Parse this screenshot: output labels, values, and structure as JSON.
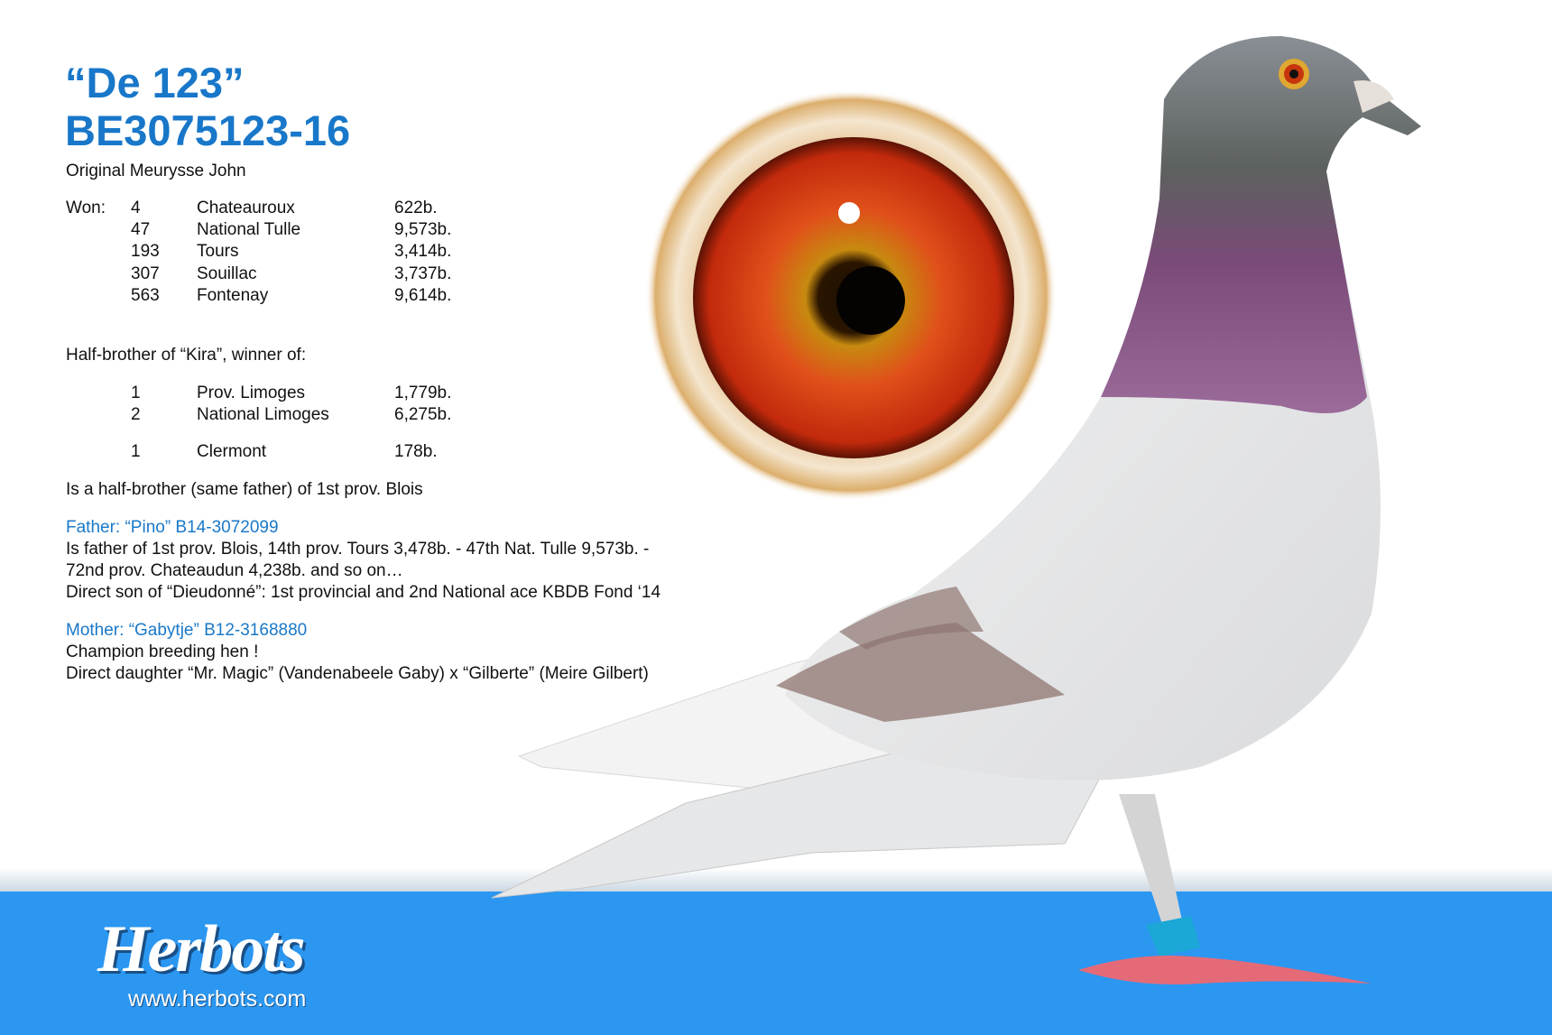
{
  "header": {
    "name": "“De 123”",
    "ring": "BE3075123-16",
    "origin": "Original Meurysse John"
  },
  "won": {
    "label": "Won:",
    "results": [
      {
        "place": "4",
        "race": "Chateauroux",
        "birds": "622b."
      },
      {
        "place": "47",
        "race": "National Tulle",
        "birds": "9,573b."
      },
      {
        "place": "193",
        "race": "Tours",
        "birds": "3,414b."
      },
      {
        "place": "307",
        "race": "Souillac",
        "birds": "3,737b."
      },
      {
        "place": "563",
        "race": "Fontenay",
        "birds": "9,614b."
      }
    ]
  },
  "kira": {
    "intro": "Half-brother of “Kira”, winner of:",
    "results": [
      {
        "place": "1",
        "race": "Prov. Limoges",
        "birds": "1,779b."
      },
      {
        "place": "2",
        "race": "National Limoges",
        "birds": "6,275b."
      },
      {
        "place": "1",
        "race": "Clermont",
        "birds": "178b."
      }
    ]
  },
  "blois_note": "Is a half-brother (same father) of 1st prov. Blois",
  "father": {
    "heading": "Father: “Pino” B14-3072099",
    "lines": [
      "Is father of 1st prov. Blois, 14th prov. Tours 3,478b. - 47th Nat. Tulle 9,573b. -",
      "72nd prov. Chateaudun 4,238b. and so on…",
      "Direct son of “Dieudonné”: 1st provincial and 2nd National ace KBDB Fond ‘14"
    ]
  },
  "mother": {
    "heading": "Mother: “Gabytje” B12-3168880",
    "lines": [
      "Champion breeding hen !",
      "Direct daughter “Mr. Magic” (Vandenabeele Gaby) x “Gilberte” (Meire Gilbert)"
    ]
  },
  "footer": {
    "logo": "Herbots",
    "url": "www.herbots.com",
    "band_color": "#2b97f1"
  },
  "colors": {
    "accent": "#1877c9"
  }
}
